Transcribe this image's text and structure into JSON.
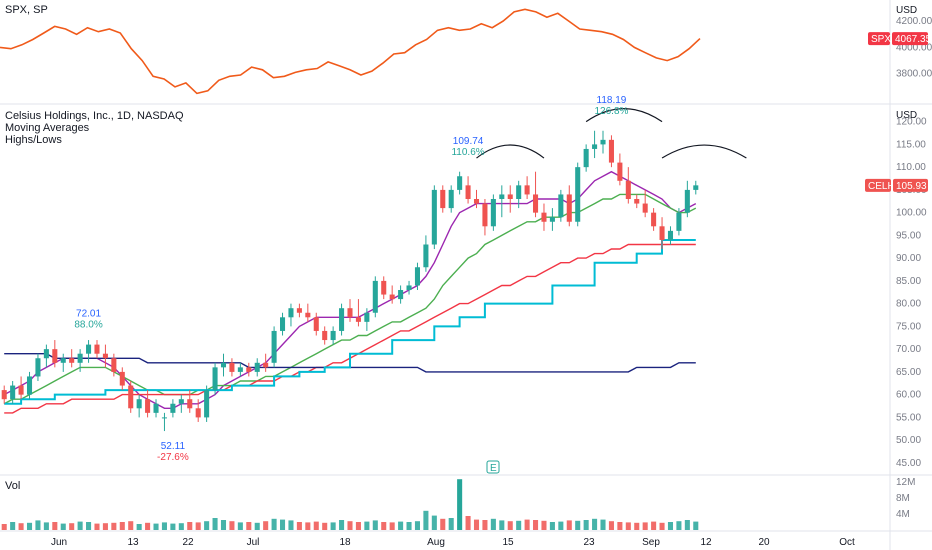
{
  "spx_panel": {
    "title": "SPX, SP",
    "currency": "USD",
    "ticks": [
      "4200.00",
      "4000.00",
      "3800.00"
    ],
    "tag_symbol": "SPX",
    "tag_value": "4067.35",
    "colors": {
      "line": "#f05a1a",
      "tag": "#f23645"
    }
  },
  "main_panel": {
    "title": "Celsius Holdings, Inc., 1D, NASDAQ",
    "legend_lines": [
      "Moving Averages",
      "Highs/Lows"
    ],
    "currency": "USD",
    "ticks": [
      "120.00",
      "115.00",
      "110.00",
      "105.00",
      "100.00",
      "95.00",
      "90.00",
      "85.00",
      "80.00",
      "75.00",
      "70.00",
      "65.00",
      "60.00",
      "55.00",
      "50.00",
      "45.00"
    ],
    "tag_symbol": "CELH",
    "tag_value": "105.93",
    "annotations": [
      {
        "price": "72.01",
        "pct": "88.0%"
      },
      {
        "price": "52.11",
        "pct": "-27.6%"
      },
      {
        "price": "109.74",
        "pct": "110.6%"
      },
      {
        "price": "118.19",
        "pct": "126.8%"
      }
    ],
    "earnings_marker": "E",
    "colors": {
      "up": "#26a69a",
      "down": "#ef5350",
      "ma1": "#9c27b0",
      "ma2": "#4caf50",
      "ma3": "#f23645",
      "ma4": "#1a237e",
      "lows": "#00bcd4",
      "arc": "#131722"
    }
  },
  "volume_panel": {
    "title": "Vol",
    "ticks": [
      "12M",
      "8M",
      "4M"
    ]
  },
  "x_axis": {
    "labels": [
      "Jun",
      "13",
      "22",
      "Jul",
      "18",
      "Aug",
      "15",
      "23",
      "Sep",
      "12",
      "20",
      "Oct"
    ]
  },
  "chart_data": [
    {
      "type": "line",
      "title": "SPX, SP",
      "ylim": [
        3600,
        4300
      ],
      "series": [
        {
          "name": "SPX",
          "values": [
            4000,
            3990,
            4020,
            4060,
            4110,
            4160,
            4140,
            4100,
            4150,
            4120,
            4140,
            4110,
            3990,
            3900,
            3780,
            3760,
            3700,
            3730,
            3650,
            3670,
            3750,
            3780,
            3790,
            3850,
            3830,
            3770,
            3780,
            3810,
            3830,
            3840,
            3890,
            3860,
            3830,
            3790,
            3820,
            3880,
            3950,
            3960,
            4020,
            4060,
            4130,
            4150,
            4130,
            4140,
            4180,
            4150,
            4200,
            4270,
            4290,
            4270,
            4230,
            4260,
            4200,
            4140,
            4130,
            4120,
            4100,
            4060,
            4000,
            3960,
            3920,
            3900,
            3930,
            3990,
            4067
          ]
        }
      ]
    },
    {
      "type": "candlestick",
      "title": "Celsius Holdings, Inc., 1D, NASDAQ",
      "ylim": [
        43,
        123
      ],
      "candles": [
        [
          61,
          62,
          58,
          59
        ],
        [
          59,
          63,
          58,
          62
        ],
        [
          62,
          64,
          59,
          60
        ],
        [
          60,
          65,
          59,
          64
        ],
        [
          64,
          69,
          63,
          68
        ],
        [
          68,
          71,
          66,
          70
        ],
        [
          70,
          72,
          66,
          67
        ],
        [
          67,
          69,
          65,
          68
        ],
        [
          68,
          70,
          66,
          67
        ],
        [
          67,
          70,
          65,
          69
        ],
        [
          69,
          72,
          67,
          71
        ],
        [
          71,
          72,
          68,
          69
        ],
        [
          69,
          71,
          66,
          68
        ],
        [
          68,
          69,
          64,
          65
        ],
        [
          65,
          66,
          61,
          62
        ],
        [
          62,
          63,
          56,
          57
        ],
        [
          57,
          60,
          55,
          59
        ],
        [
          59,
          61,
          55,
          56
        ],
        [
          56,
          59,
          55,
          58
        ],
        [
          55,
          56,
          52,
          55
        ],
        [
          56,
          59,
          55,
          58
        ],
        [
          58,
          60,
          56,
          59
        ],
        [
          59,
          61,
          56,
          57
        ],
        [
          57,
          59,
          54,
          55
        ],
        [
          55,
          62,
          54,
          61
        ],
        [
          61,
          67,
          60,
          66
        ],
        [
          66,
          69,
          64,
          67
        ],
        [
          67,
          68,
          64,
          65
        ],
        [
          65,
          67,
          64,
          66
        ],
        [
          66,
          67,
          64,
          65
        ],
        [
          65,
          68,
          64,
          67
        ],
        [
          67,
          69,
          65,
          66
        ],
        [
          67,
          75,
          66,
          74
        ],
        [
          74,
          78,
          73,
          77
        ],
        [
          77,
          80,
          75,
          79
        ],
        [
          79,
          80,
          77,
          78
        ],
        [
          78,
          80,
          76,
          77
        ],
        [
          77,
          78,
          73,
          74
        ],
        [
          74,
          75,
          71,
          72
        ],
        [
          72,
          75,
          71,
          74
        ],
        [
          74,
          80,
          73,
          79
        ],
        [
          79,
          81,
          76,
          77
        ],
        [
          77,
          81,
          75,
          76
        ],
        [
          76,
          79,
          74,
          78
        ],
        [
          78,
          86,
          77,
          85
        ],
        [
          85,
          86,
          81,
          82
        ],
        [
          82,
          84,
          80,
          81
        ],
        [
          81,
          84,
          80,
          83
        ],
        [
          83,
          85,
          82,
          84
        ],
        [
          84,
          89,
          83,
          88
        ],
        [
          88,
          95,
          87,
          93
        ],
        [
          93,
          106,
          92,
          105
        ],
        [
          105,
          106,
          100,
          101
        ],
        [
          101,
          106,
          100,
          105
        ],
        [
          105,
          109,
          104,
          108
        ],
        [
          106,
          108,
          102,
          103
        ],
        [
          103,
          105,
          101,
          102
        ],
        [
          102,
          103,
          95,
          97
        ],
        [
          97,
          104,
          96,
          103
        ],
        [
          103,
          106,
          99,
          104
        ],
        [
          104,
          106,
          100,
          103
        ],
        [
          103,
          107,
          101,
          106
        ],
        [
          106,
          108,
          103,
          104
        ],
        [
          104,
          109,
          99,
          100
        ],
        [
          100,
          102,
          96,
          98
        ],
        [
          98,
          101,
          96,
          99
        ],
        [
          99,
          105,
          98,
          104
        ],
        [
          104,
          106,
          97,
          98
        ],
        [
          98,
          111,
          97,
          110
        ],
        [
          110,
          115,
          109,
          114
        ],
        [
          114,
          118,
          112,
          115
        ],
        [
          115,
          118,
          113,
          116
        ],
        [
          116,
          117,
          110,
          111
        ],
        [
          111,
          113,
          106,
          107
        ],
        [
          107,
          110,
          102,
          103
        ],
        [
          103,
          104,
          101,
          102
        ],
        [
          102,
          105,
          99,
          100
        ],
        [
          100,
          101,
          96,
          97
        ],
        [
          97,
          99,
          92,
          94
        ],
        [
          94,
          97,
          93,
          96
        ],
        [
          96,
          101,
          95,
          100
        ],
        [
          100,
          107,
          99,
          105
        ],
        [
          105,
          107,
          104,
          106
        ]
      ],
      "series": [
        {
          "name": "MA 10",
          "values": [
            60,
            61,
            62,
            63,
            65,
            66,
            67,
            68,
            68,
            68,
            68,
            68,
            67,
            66,
            64,
            62,
            60,
            59,
            58,
            57,
            57,
            58,
            58,
            58,
            59,
            60,
            62,
            63,
            64,
            65,
            66,
            67,
            69,
            71,
            73,
            75,
            76,
            77,
            77,
            77,
            77,
            77,
            77,
            78,
            79,
            80,
            81,
            82,
            83,
            84,
            86,
            89,
            93,
            97,
            100,
            101,
            102,
            102,
            102,
            102,
            102,
            102,
            102,
            103,
            103,
            103,
            103,
            102,
            103,
            105,
            107,
            108,
            109,
            108,
            107,
            106,
            105,
            104,
            103,
            101,
            100,
            101,
            102
          ]
        },
        {
          "name": "MA 20",
          "values": [
            58,
            59,
            59,
            60,
            61,
            62,
            63,
            64,
            65,
            66,
            66,
            66,
            66,
            65,
            64,
            63,
            62,
            61,
            61,
            60,
            60,
            60,
            60,
            61,
            61,
            62,
            62,
            62,
            63,
            63,
            63,
            64,
            64,
            65,
            66,
            67,
            68,
            69,
            70,
            71,
            72,
            72,
            73,
            73,
            74,
            75,
            76,
            76,
            77,
            78,
            79,
            81,
            84,
            86,
            88,
            90,
            91,
            93,
            94,
            95,
            96,
            97,
            98,
            98,
            99,
            99,
            99,
            100,
            100,
            101,
            102,
            103,
            103,
            104,
            104,
            104,
            104,
            103,
            102,
            101,
            100,
            100,
            101
          ]
        },
        {
          "name": "MA 50",
          "values": [
            56,
            56,
            57,
            57,
            57,
            58,
            58,
            58,
            59,
            59,
            59,
            59,
            59,
            59,
            60,
            60,
            60,
            60,
            60,
            60,
            60,
            60,
            60,
            60,
            61,
            61,
            61,
            62,
            62,
            62,
            63,
            63,
            63,
            64,
            64,
            65,
            65,
            66,
            66,
            67,
            67,
            68,
            69,
            70,
            71,
            72,
            73,
            74,
            74,
            75,
            76,
            77,
            78,
            79,
            80,
            80,
            81,
            82,
            83,
            84,
            84,
            85,
            86,
            86,
            87,
            88,
            89,
            89,
            90,
            90,
            91,
            91,
            92,
            92,
            93,
            93,
            93,
            93,
            93,
            93,
            93,
            93,
            93
          ]
        },
        {
          "name": "MA 200",
          "values": [
            69,
            69,
            69,
            69,
            69,
            69,
            68,
            68,
            68,
            68,
            68,
            68,
            68,
            68,
            68,
            68,
            68,
            67,
            67,
            67,
            67,
            67,
            67,
            67,
            67,
            67,
            67,
            67,
            67,
            66,
            66,
            66,
            66,
            66,
            66,
            66,
            66,
            66,
            66,
            66,
            66,
            66,
            66,
            66,
            66,
            66,
            66,
            66,
            66,
            66,
            65,
            65,
            65,
            65,
            65,
            65,
            65,
            65,
            65,
            65,
            65,
            65,
            65,
            65,
            65,
            65,
            65,
            65,
            65,
            65,
            65,
            65,
            65,
            65,
            65,
            66,
            66,
            66,
            66,
            66,
            67,
            67,
            67
          ]
        },
        {
          "name": "Lows",
          "values": [
            58,
            58,
            59,
            59,
            59,
            59,
            60,
            60,
            60,
            60,
            60,
            60,
            61,
            61,
            61,
            61,
            61,
            61,
            61,
            61,
            61,
            61,
            61,
            61,
            61,
            61,
            61,
            62,
            62,
            62,
            62,
            62,
            64,
            64,
            64,
            65,
            65,
            65,
            66,
            66,
            66,
            69,
            69,
            69,
            69,
            69,
            72,
            72,
            72,
            72,
            72,
            75,
            75,
            75,
            77,
            77,
            77,
            80,
            80,
            80,
            80,
            80,
            80,
            80,
            80,
            84,
            84,
            84,
            84,
            84,
            89,
            89,
            89,
            89,
            89,
            91,
            91,
            91,
            94,
            94,
            94,
            94,
            94
          ]
        }
      ],
      "annotations": [
        {
          "text": "72.01",
          "sub": "88.0%",
          "type": "high"
        },
        {
          "text": "52.11",
          "sub": "-27.6%",
          "type": "low"
        },
        {
          "text": "109.74",
          "sub": "110.6%",
          "type": "high"
        },
        {
          "text": "118.19",
          "sub": "126.8%",
          "type": "high"
        }
      ]
    },
    {
      "type": "bar",
      "title": "Vol",
      "ylim": [
        0,
        13
      ],
      "values": [
        1.5,
        2.0,
        1.7,
        1.8,
        2.4,
        1.9,
        2.0,
        1.6,
        1.7,
        2.1,
        2.0,
        1.6,
        1.7,
        1.8,
        2.0,
        2.2,
        1.5,
        1.8,
        1.6,
        1.9,
        1.6,
        1.7,
        2.0,
        1.9,
        2.2,
        3.0,
        2.5,
        2.2,
        1.9,
        2.0,
        1.8,
        2.2,
        2.8,
        2.6,
        2.4,
        2.0,
        1.9,
        2.1,
        1.8,
        1.9,
        2.5,
        2.2,
        2.0,
        2.1,
        2.4,
        2.0,
        1.9,
        2.1,
        2.0,
        2.2,
        4.8,
        3.6,
        2.8,
        3.0,
        12.7,
        3.5,
        2.6,
        2.5,
        2.8,
        2.4,
        2.2,
        2.3,
        2.6,
        2.5,
        2.3,
        2.0,
        2.1,
        2.4,
        2.3,
        2.5,
        2.8,
        2.6,
        2.2,
        2.0,
        1.9,
        1.8,
        1.9,
        2.1,
        1.8,
        2.0,
        2.2,
        2.5,
        2.1
      ]
    }
  ]
}
